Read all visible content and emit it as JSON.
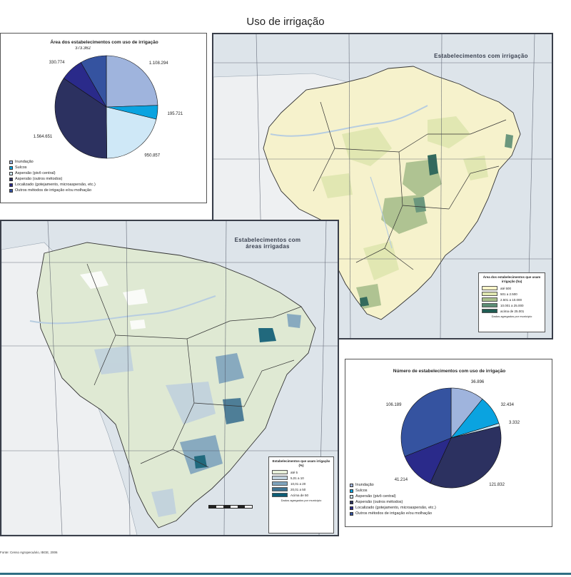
{
  "title": "Uso de irrigação",
  "source": "Fonte: Censo Agropecuário, IBGE, 2006",
  "area_chart": {
    "title": "Área dos estabelecimentos com uso de irrigação",
    "legend": [
      {
        "label": "Inundação",
        "color": "#9fb4dd"
      },
      {
        "label": "Sulcos",
        "color": "#0aa3e0"
      },
      {
        "label": "Aspersão (pivô central)",
        "color": "#cfe8f7"
      },
      {
        "label": "Aspersão (outros métodos)",
        "color": "#2c3160"
      },
      {
        "label": "Localizado (gotejamento, microaspersão, etc.)",
        "color": "#2a2a8a"
      },
      {
        "label": "Outros métodos de irrigação e/ou molhação",
        "color": "#3553a0"
      }
    ]
  },
  "count_chart": {
    "title": "Número de estabelecimentos com uso de irrigação",
    "legend": [
      {
        "label": "Inundação",
        "color": "#9fb4dd"
      },
      {
        "label": "Sulcos",
        "color": "#0aa3e0"
      },
      {
        "label": "Aspersão (pivô central)",
        "color": "#cfe8f7"
      },
      {
        "label": "Aspersão (outros métodos)",
        "color": "#2c3160"
      },
      {
        "label": "Localizado (gotejamento, microaspersão, etc.)",
        "color": "#2a2a8a"
      },
      {
        "label": "Outros métodos de irrigação e/ou molhação",
        "color": "#3553a0"
      }
    ]
  },
  "chart_data": [
    {
      "type": "pie",
      "title": "Área dos estabelecimentos com uso de irrigação",
      "categories": [
        "Inundação",
        "Sulcos",
        "Aspersão (pivô central)",
        "Aspersão (outros métodos)",
        "Localizado (gotejamento, microaspersão, etc.)",
        "Outros métodos de irrigação e/ou molhação"
      ],
      "values": [
        1108294,
        195721,
        950857,
        1564651,
        330774,
        373362
      ],
      "value_labels": [
        "1.108.294",
        "195.721",
        "950.857",
        "1.564.651",
        "330.774",
        "373.362"
      ],
      "colors": [
        "#9fb4dd",
        "#0aa3e0",
        "#cfe8f7",
        "#2c3160",
        "#2a2a8a",
        "#3553a0"
      ],
      "legend_position": "bottom-left"
    },
    {
      "type": "pie",
      "title": "Número de estabelecimentos com uso de irrigação",
      "categories": [
        "Inundação",
        "Sulcos",
        "Aspersão (pivô central)",
        "Aspersão (outros métodos)",
        "Localizado (gotejamento, microaspersão, etc.)",
        "Outros métodos de irrigação e/ou molhação"
      ],
      "values": [
        36896,
        32434,
        3332,
        121832,
        41214,
        106189
      ],
      "value_labels": [
        "36.896",
        "32.434",
        "3.332",
        "121.832",
        "41.214",
        "106.189"
      ],
      "colors": [
        "#9fb4dd",
        "#0aa3e0",
        "#cfe8f7",
        "#2c3160",
        "#2a2a8a",
        "#3553a0"
      ],
      "legend_position": "bottom-left"
    }
  ],
  "map_establishments": {
    "title": "Estabelecimentos com irrigação",
    "legend_title": "Área dos estabelecimentos que usam irrigação (ha)",
    "classes": [
      {
        "label": "até 500",
        "color": "#fbf5c8"
      },
      {
        "label": "501 a 2.500",
        "color": "#dfe6b0"
      },
      {
        "label": "2.501 a 10.000",
        "color": "#a8bf8c"
      },
      {
        "label": "10.001 a 25.000",
        "color": "#5c8e75"
      },
      {
        "label": "acima de 25.001",
        "color": "#1f5c52"
      }
    ],
    "legend_note": "Dados agregados por município",
    "colors": {
      "land": "#f6f2cc",
      "sea": "#dde4ea",
      "water": "#b7cde0"
    }
  },
  "map_areas": {
    "title": "Estabelecimentos com áreas irrigadas",
    "legend_title": "Estabelecimentos que usam irrigação (%)",
    "classes": [
      {
        "label": "até 5",
        "color": "#e8f0da"
      },
      {
        "label": "5,01 a 10",
        "color": "#c0d1dd"
      },
      {
        "label": "10,01 a 20",
        "color": "#7fa4bd"
      },
      {
        "label": "20,01 a 50",
        "color": "#3f7391"
      },
      {
        "label": "Acima de 50",
        "color": "#0d5c74"
      }
    ],
    "legend_note": "Dados agregados por município",
    "colors": {
      "land": "#dfe9d3",
      "sea": "#dde4ea",
      "water": "#b7cde0"
    }
  }
}
